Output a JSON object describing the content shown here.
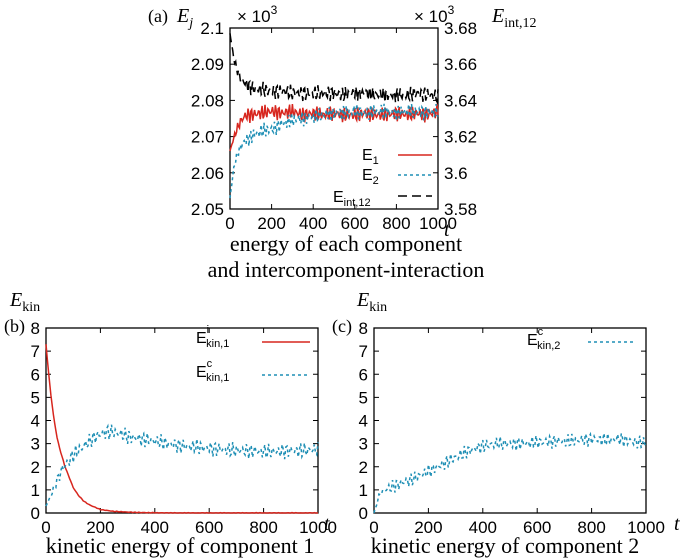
{
  "colors": {
    "red": "#d7261e",
    "blue": "#1f8fb5",
    "black": "#000000"
  },
  "panel_a": {
    "tag": "(a)",
    "ylabel_left": "E",
    "ylabel_left_sub": "j",
    "ylabel_right": "E",
    "ylabel_right_sub": "int,12",
    "scale_left": "× 10",
    "scale_left_exp": "3",
    "scale_right": "× 10",
    "scale_right_exp": "3",
    "xlabel": "t",
    "caption_line1": "energy of each component",
    "caption_line2": "and intercomponent-interaction",
    "xticks": [
      "0",
      "200",
      "400",
      "600",
      "800",
      "1000"
    ],
    "yticks_left": [
      "2.05",
      "2.06",
      "2.07",
      "2.08",
      "2.09",
      "2.1"
    ],
    "yticks_right": [
      "3.58",
      "3.6",
      "3.62",
      "3.64",
      "3.66",
      "3.68"
    ],
    "legend": [
      {
        "base": "E",
        "sub": "1"
      },
      {
        "base": "E",
        "sub": "2"
      },
      {
        "base": "E",
        "sub": "int,12"
      }
    ]
  },
  "panel_b": {
    "tag": "(b)",
    "ylabel": "E",
    "ylabel_sub": "kin",
    "xlabel": "t",
    "caption": "kinetic energy of component 1",
    "xticks": [
      "0",
      "200",
      "400",
      "600",
      "800",
      "1000"
    ],
    "yticks": [
      "0",
      "1",
      "2",
      "3",
      "4",
      "5",
      "6",
      "7",
      "8"
    ],
    "legend": [
      {
        "base": "E",
        "sup": "i",
        "sub": "kin,1"
      },
      {
        "base": "E",
        "sup": "c",
        "sub": "kin,1"
      }
    ]
  },
  "panel_c": {
    "tag": "(c)",
    "ylabel": "E",
    "ylabel_sub": "kin",
    "xlabel": "t",
    "caption": "kinetic energy of component 2",
    "xticks": [
      "0",
      "200",
      "400",
      "600",
      "800",
      "1000"
    ],
    "yticks": [
      "0",
      "1",
      "2",
      "3",
      "4",
      "5",
      "6",
      "7",
      "8"
    ],
    "legend": [
      {
        "base": "E",
        "sup": "c",
        "sub": "kin,2"
      }
    ]
  },
  "chart_data": [
    {
      "type": "line",
      "xlim": [
        0,
        1000
      ],
      "ylim": [
        2.05,
        2.1
      ],
      "ylim_right": [
        3.58,
        3.68
      ],
      "series": [
        {
          "name": "E_1",
          "axis": "left",
          "color": "#d7261e",
          "dash": "solid",
          "x": [
            0,
            20,
            40,
            60,
            80,
            100,
            150,
            200,
            250,
            300,
            350,
            400,
            450,
            500,
            550,
            600,
            650,
            700,
            750,
            800,
            850,
            900,
            950,
            1000
          ],
          "y": [
            2.066,
            2.07,
            2.073,
            2.075,
            2.076,
            2.076,
            2.0765,
            2.077,
            2.0765,
            2.077,
            2.076,
            2.0765,
            2.076,
            2.0765,
            2.076,
            2.076,
            2.0765,
            2.076,
            2.076,
            2.0765,
            2.076,
            2.0765,
            2.076,
            2.077
          ]
        },
        {
          "name": "E_2",
          "axis": "left",
          "color": "#1f8fb5",
          "dash": "dotted",
          "x": [
            0,
            20,
            40,
            60,
            80,
            100,
            150,
            200,
            250,
            300,
            350,
            400,
            450,
            500,
            550,
            600,
            650,
            700,
            750,
            800,
            850,
            900,
            950,
            1000
          ],
          "y": [
            2.053,
            2.062,
            2.066,
            2.068,
            2.069,
            2.07,
            2.0715,
            2.072,
            2.0735,
            2.0745,
            2.075,
            2.0755,
            2.076,
            2.0765,
            2.0765,
            2.077,
            2.0765,
            2.077,
            2.077,
            2.0765,
            2.077,
            2.077,
            2.0765,
            2.077
          ]
        },
        {
          "name": "E_int,12",
          "axis": "right",
          "color": "#000000",
          "dash": "dashed",
          "x": [
            0,
            20,
            40,
            60,
            80,
            100,
            150,
            200,
            250,
            300,
            350,
            400,
            450,
            500,
            550,
            600,
            650,
            700,
            750,
            800,
            850,
            900,
            950,
            1000
          ],
          "y": [
            3.677,
            3.662,
            3.655,
            3.651,
            3.649,
            3.647,
            3.646,
            3.645,
            3.645,
            3.644,
            3.644,
            3.644,
            3.644,
            3.644,
            3.643,
            3.644,
            3.644,
            3.643,
            3.643,
            3.643,
            3.643,
            3.644,
            3.643,
            3.642
          ]
        }
      ]
    },
    {
      "type": "line",
      "xlim": [
        0,
        1000
      ],
      "ylim": [
        0,
        8
      ],
      "series": [
        {
          "name": "E^i_kin,1",
          "color": "#d7261e",
          "dash": "solid",
          "x": [
            0,
            10,
            20,
            30,
            40,
            50,
            60,
            70,
            80,
            90,
            100,
            120,
            140,
            160,
            180,
            200,
            250,
            300,
            350,
            400,
            500,
            600,
            700,
            800,
            900,
            1000
          ],
          "y": [
            7.3,
            6.0,
            4.9,
            4.0,
            3.3,
            2.8,
            2.4,
            2.0,
            1.7,
            1.4,
            1.1,
            0.75,
            0.5,
            0.35,
            0.25,
            0.15,
            0.07,
            0.04,
            0.02,
            0.01,
            0.0,
            0.0,
            0.0,
            0.0,
            0.0,
            0.0
          ]
        },
        {
          "name": "E^c_kin,1",
          "color": "#1f8fb5",
          "dash": "dotted",
          "x": [
            0,
            20,
            40,
            60,
            80,
            100,
            120,
            140,
            160,
            180,
            200,
            220,
            240,
            260,
            280,
            300,
            350,
            400,
            450,
            500,
            550,
            600,
            650,
            700,
            750,
            800,
            850,
            900,
            950,
            1000
          ],
          "y": [
            0.3,
            0.8,
            1.4,
            1.9,
            2.2,
            2.5,
            2.7,
            2.9,
            3.1,
            3.3,
            3.4,
            3.5,
            3.5,
            3.45,
            3.4,
            3.3,
            3.2,
            3.1,
            3.0,
            2.9,
            2.85,
            2.8,
            2.75,
            2.7,
            2.7,
            2.65,
            2.65,
            2.7,
            2.7,
            2.75
          ]
        }
      ]
    },
    {
      "type": "line",
      "xlim": [
        0,
        1000
      ],
      "ylim": [
        0,
        8
      ],
      "series": [
        {
          "name": "E^c_kin,2",
          "color": "#1f8fb5",
          "dash": "dotted",
          "x": [
            0,
            20,
            40,
            60,
            80,
            100,
            150,
            200,
            250,
            300,
            350,
            400,
            450,
            500,
            550,
            600,
            650,
            700,
            750,
            800,
            850,
            900,
            950,
            1000
          ],
          "y": [
            0.0,
            0.8,
            1.0,
            1.1,
            1.2,
            1.3,
            1.5,
            1.8,
            2.1,
            2.4,
            2.7,
            2.9,
            3.0,
            3.0,
            3.0,
            3.05,
            3.1,
            3.1,
            3.15,
            3.2,
            3.15,
            3.2,
            3.1,
            3.0
          ]
        }
      ]
    }
  ]
}
